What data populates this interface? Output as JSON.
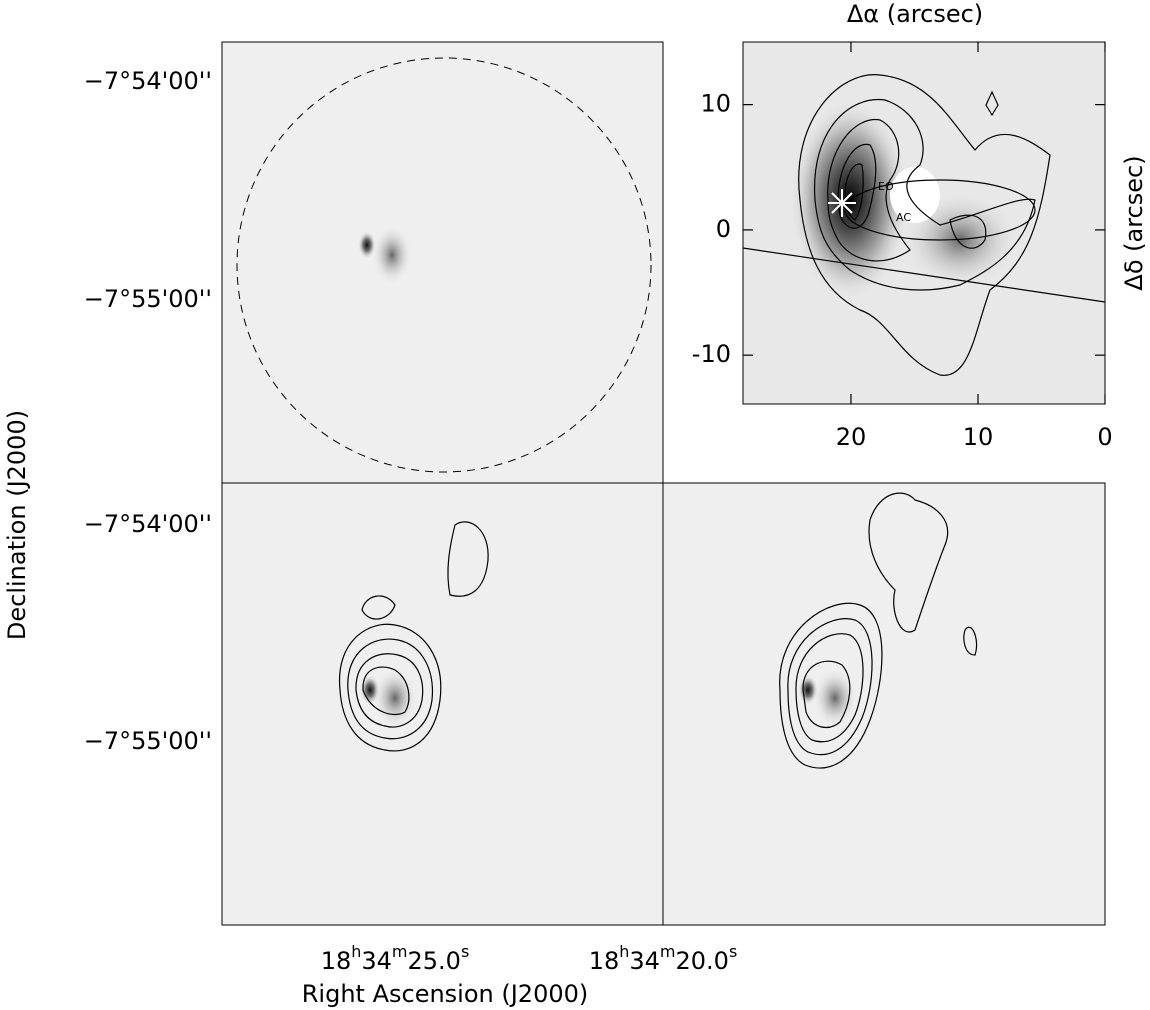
{
  "figure": {
    "dec_label": "Declination (J2000)",
    "ra_label": "Right Ascension (J2000)",
    "dec_ticks": [
      "−7°54'00''",
      "−7°55'00''",
      "−7°54'00''",
      "−7°55'00''"
    ],
    "ra_ticks": [
      [
        "18",
        "h",
        "34",
        "m",
        "25.0",
        "s"
      ],
      [
        "18",
        "h",
        "34",
        "m",
        "20.0",
        "s"
      ]
    ],
    "inset": {
      "x_label": "Δα (arcsec)",
      "y_label": "Δδ (arcsec)",
      "xlim": [
        28.5,
        0
      ],
      "ylim": [
        -13.9,
        15
      ],
      "xticks": [
        20,
        10,
        0
      ],
      "yticks": [
        10,
        0,
        -10
      ],
      "annotations": [
        "EO",
        "AC"
      ]
    }
  }
}
